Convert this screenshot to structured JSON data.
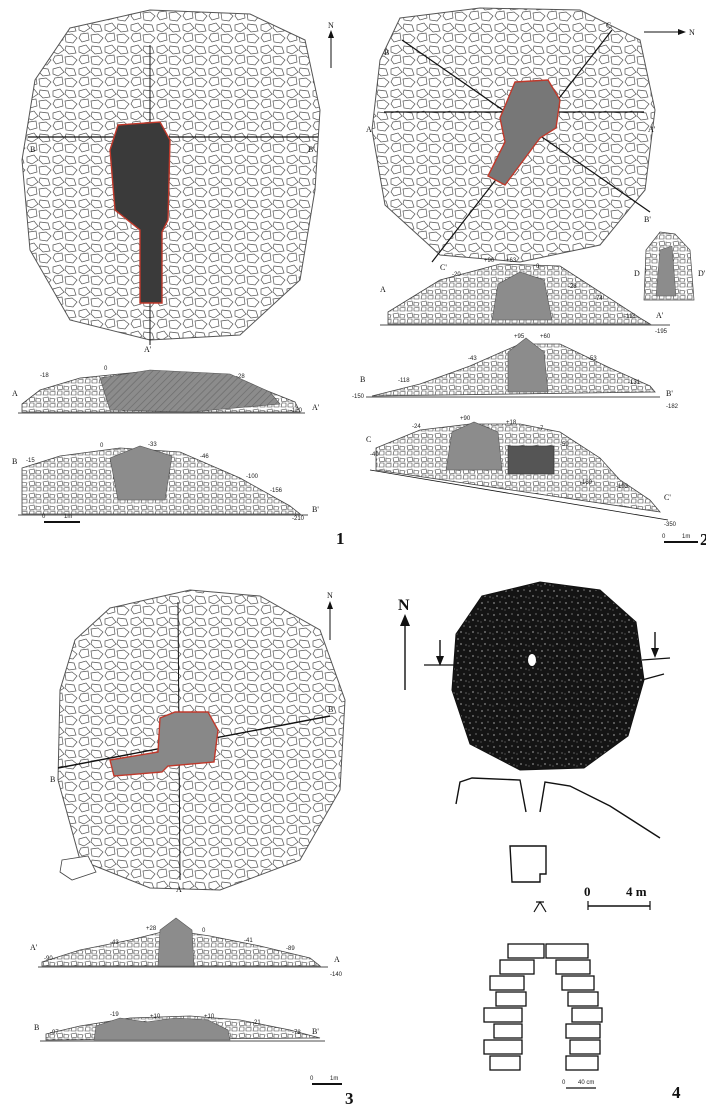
{
  "panels": [
    {
      "number": "1",
      "north": "N",
      "section_labels": {
        "a": "A",
        "a_prime": "A'",
        "b": "B",
        "b_prime": "B'"
      },
      "scale": {
        "zero": "0",
        "max": "1m"
      },
      "elevations_a": [
        "-18",
        "0",
        "-28",
        "-120"
      ],
      "elevations_b": [
        "-15",
        "0",
        "-33",
        "-46",
        "-100",
        "-156",
        "-210"
      ]
    },
    {
      "number": "2",
      "north": "N",
      "section_labels": {
        "a": "A",
        "a_prime": "A'",
        "b": "B",
        "b_prime": "B'",
        "c": "C",
        "c_prime": "C'",
        "d": "D",
        "d_prime": "D'"
      },
      "scale": {
        "zero": "0",
        "max": "1m"
      },
      "elevations_a": [
        "-20",
        "+90",
        "+63",
        "0",
        "-28",
        "-74",
        "-118",
        "-195"
      ],
      "elevations_b": [
        "-150",
        "-118",
        "-43",
        "+95",
        "+60",
        "-53",
        "-131",
        "-182"
      ],
      "elevations_c": [
        "-40",
        "-24",
        "+90",
        "+18",
        "-7",
        "-59",
        "-169",
        "-193",
        "-350"
      ]
    },
    {
      "number": "3",
      "north": "N",
      "section_labels": {
        "a": "A",
        "a_prime": "A'",
        "b": "B",
        "b_prime": "B'"
      },
      "scale": {
        "zero": "0",
        "max": "1m"
      },
      "elevations_a": [
        "-90",
        "-43",
        "+28",
        "0",
        "-41",
        "-89",
        "-140"
      ],
      "elevations_b": [
        "-97",
        "-19",
        "+10",
        "+10",
        "-21",
        "-78"
      ]
    },
    {
      "number": "4",
      "north": "N",
      "scale_plan": {
        "zero": "0",
        "max": "4 m"
      },
      "scale_detail": {
        "zero": "0",
        "max": "40 cm"
      }
    }
  ],
  "colors": {
    "ink": "#1a1a1a",
    "fill": "#8c8c8c",
    "outline": "#c0392b",
    "mound": "#141414"
  }
}
